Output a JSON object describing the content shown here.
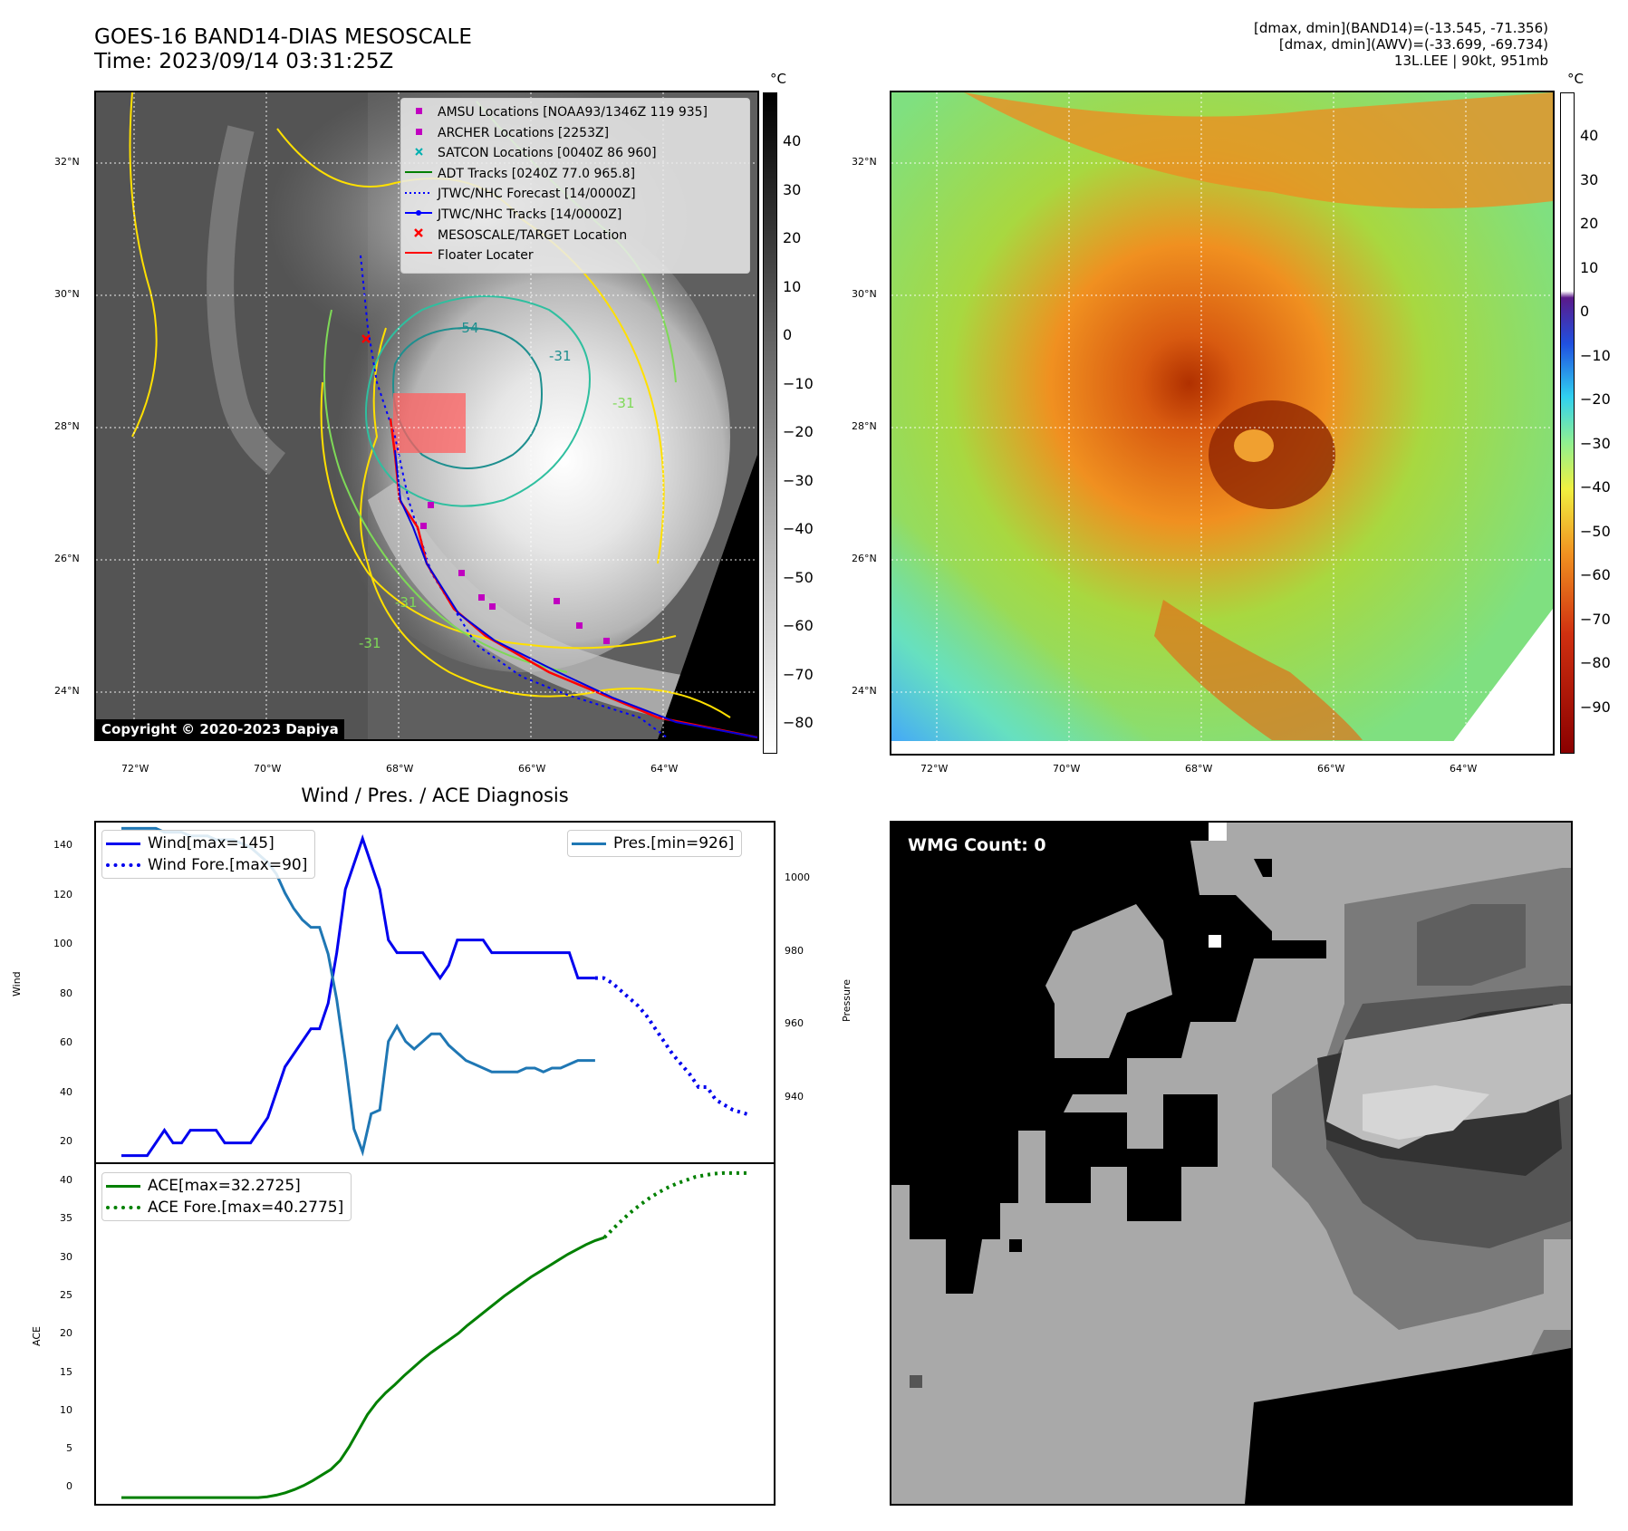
{
  "header": {
    "title_line1": "GOES-16 BAND14-DIAS MESOSCALE",
    "title_line2": "Time: 2023/09/14 03:31:25Z",
    "right_line1": "[dmax, dmin](BAND14)=(-13.545, -71.356)",
    "right_line2": "[dmax, dmin](AWV)=(-33.699, -69.734)",
    "right_line3": "13L.LEE | 90kt, 951mb"
  },
  "map": {
    "lat_labels": [
      "32°N",
      "30°N",
      "28°N",
      "26°N",
      "24°N"
    ],
    "lon_labels": [
      "72°W",
      "70°W",
      "68°W",
      "66°W",
      "64°W"
    ],
    "copyright": "Copyright © 2020-2023 Dapiya",
    "contour_labels": [
      "-54",
      "-31",
      "-31",
      "-31",
      "-31"
    ],
    "legend": [
      {
        "label": "AMSU Locations [NOAA93/1346Z 119 935]",
        "color": "#c000c0",
        "marker": "square"
      },
      {
        "label": "ARCHER Locations [2253Z]",
        "color": "#c000c0",
        "marker": "square"
      },
      {
        "label": "SATCON Locations [0040Z 86 960]",
        "color": "#00b0b0",
        "marker": "x"
      },
      {
        "label": "ADT Tracks [0240Z 77.0 965.8]",
        "color": "#008000",
        "marker": "line"
      },
      {
        "label": "JTWC/NHC Forecast [14/0000Z]",
        "color": "#0000ff",
        "marker": "dotted"
      },
      {
        "label": "JTWC/NHC Tracks [14/0000Z]",
        "color": "#0000ff",
        "marker": "line-dot"
      },
      {
        "label": "MESOSCALE/TARGET Location",
        "color": "#ff0000",
        "marker": "x"
      },
      {
        "label": "Floater Locater",
        "color": "#ff0000",
        "marker": "line"
      }
    ]
  },
  "colorbar_gray": {
    "unit": "°C",
    "ticks": [
      "40",
      "30",
      "20",
      "10",
      "0",
      "−10",
      "−20",
      "−30",
      "−40",
      "−50",
      "−60",
      "−70",
      "−80"
    ]
  },
  "colorbar_color": {
    "unit": "°C",
    "ticks": [
      "40",
      "30",
      "20",
      "10",
      "0",
      "−10",
      "−20",
      "−30",
      "−40",
      "−50",
      "−60",
      "−70",
      "−80",
      "−90"
    ]
  },
  "diag": {
    "title": "Wind / Pres. / ACE Diagnosis",
    "wind_ylabel": "Wind",
    "pres_ylabel": "Pressure",
    "ace_ylabel": "ACE",
    "wind_ticks": [
      "140",
      "120",
      "100",
      "80",
      "60",
      "40",
      "20"
    ],
    "pres_ticks": [
      "1000",
      "980",
      "960",
      "940"
    ],
    "ace_ticks": [
      "40",
      "35",
      "30",
      "25",
      "20",
      "15",
      "10",
      "5",
      "0"
    ],
    "legend_wind": "Wind[max=145]",
    "legend_wind_fore": "Wind Fore.[max=90]",
    "legend_pres": "Pres.[min=926]",
    "legend_ace": "ACE[max=32.2725]",
    "legend_ace_fore": "ACE Fore.[max=40.2775]"
  },
  "wmg": {
    "label": "WMG Count: 0"
  },
  "chart_data": [
    {
      "type": "line",
      "title": "Wind / Pres. / ACE Diagnosis",
      "ylabel": "Wind",
      "ylim": [
        17,
        152
      ],
      "series": [
        {
          "name": "Wind[max=145]",
          "color": "#0000ee",
          "values": [
            20,
            20,
            20,
            20,
            25,
            30,
            25,
            25,
            30,
            30,
            30,
            30,
            25,
            25,
            25,
            25,
            30,
            35,
            45,
            55,
            60,
            65,
            70,
            70,
            80,
            100,
            125,
            135,
            145,
            135,
            125,
            105,
            100,
            100,
            100,
            100,
            95,
            90,
            95,
            105,
            105,
            105,
            105,
            100,
            100,
            100,
            100,
            100,
            100,
            100,
            100,
            100,
            100,
            90,
            90,
            90
          ]
        },
        {
          "name": "Wind Fore.[max=90]",
          "color": "#0000ee",
          "dashed": true,
          "values": [
            90,
            90,
            88,
            85,
            82,
            79,
            75,
            70,
            65,
            60,
            56,
            52,
            47,
            47,
            42,
            40,
            38,
            37,
            36
          ]
        }
      ]
    },
    {
      "type": "line",
      "ylabel": "Pressure",
      "ylim": [
        923,
        1013
      ],
      "series": [
        {
          "name": "Pres.[min=926]",
          "color": "#1f77b4",
          "values": [
            1011,
            1011,
            1011,
            1011,
            1011,
            1010,
            1010,
            1010,
            1009,
            1009,
            1009,
            1008,
            1008,
            1008,
            1007,
            1006,
            1004,
            1002,
            999,
            994,
            990,
            987,
            985,
            985,
            978,
            966,
            950,
            932,
            926,
            936,
            937,
            955,
            959,
            955,
            953,
            955,
            957,
            957,
            954,
            952,
            950,
            949,
            948,
            947,
            947,
            947,
            947,
            948,
            948,
            947,
            948,
            948,
            949,
            950,
            950,
            950
          ]
        }
      ]
    },
    {
      "type": "line",
      "ylabel": "ACE",
      "ylim": [
        -1,
        41.5
      ],
      "series": [
        {
          "name": "ACE[max=32.2725]",
          "color": "#008000",
          "values": [
            0,
            0,
            0,
            0,
            0,
            0,
            0,
            0,
            0,
            0,
            0,
            0,
            0,
            0,
            0,
            0,
            0.1,
            0.3,
            0.6,
            1.0,
            1.5,
            2.1,
            2.8,
            3.5,
            4.6,
            6.3,
            8.3,
            10.3,
            11.8,
            13.0,
            14.0,
            15.1,
            16.1,
            17.1,
            18.0,
            18.8,
            19.6,
            20.4,
            21.4,
            22.3,
            23.2,
            24.1,
            25.0,
            25.8,
            26.6,
            27.4,
            28.1,
            28.8,
            29.5,
            30.2,
            30.8,
            31.4,
            31.9,
            32.27
          ]
        },
        {
          "name": "ACE Fore.[max=40.2775]",
          "color": "#008000",
          "dashed": true,
          "values": [
            32.27,
            33.4,
            34.5,
            35.5,
            36.4,
            37.2,
            37.9,
            38.5,
            39.0,
            39.4,
            39.8,
            40.0,
            40.2,
            40.27,
            40.27,
            40.27,
            40.27
          ]
        }
      ]
    }
  ]
}
